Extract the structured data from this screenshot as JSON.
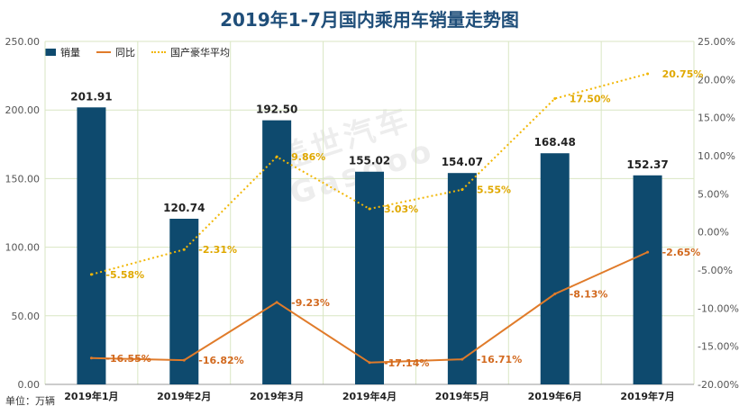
{
  "chart_data": {
    "type": "bar",
    "title": "2019年1-7月国内乘用车销量走势图",
    "unit_label": "单位：万辆",
    "watermark": "盖世汽车 Gasgoo",
    "categories": [
      "2019年1月",
      "2019年2月",
      "2019年3月",
      "2019年4月",
      "2019年5月",
      "2019年6月",
      "2019年7月"
    ],
    "series": [
      {
        "name": "销量",
        "kind": "bar",
        "axis": "left",
        "color": "#0e4a6e",
        "values": [
          201.91,
          120.74,
          192.5,
          155.02,
          154.07,
          168.48,
          152.37
        ],
        "labels": [
          "201.91",
          "120.74",
          "192.50",
          "155.02",
          "154.07",
          "168.48",
          "152.37"
        ]
      },
      {
        "name": "同比",
        "kind": "line",
        "axis": "right",
        "color": "#e07b2a",
        "values": [
          -16.55,
          -16.82,
          -9.23,
          -17.14,
          -16.71,
          -8.13,
          -2.65
        ],
        "labels": [
          "-16.55%",
          "-16.82%",
          "-9.23%",
          "-17.14%",
          "-16.71%",
          "-8.13%",
          "-2.65%"
        ]
      },
      {
        "name": "国产豪华平均",
        "kind": "dotted-line",
        "axis": "right",
        "color": "#f2b705",
        "values": [
          -5.58,
          -2.31,
          9.86,
          3.03,
          5.55,
          17.5,
          20.75
        ],
        "labels": [
          "-5.58%",
          "-2.31%",
          "9.86%",
          "3.03%",
          "5.55%",
          "17.50%",
          "20.75%"
        ]
      }
    ],
    "y_left": {
      "ylim": [
        0,
        250
      ],
      "ticks": [
        "0.00",
        "50.00",
        "100.00",
        "150.00",
        "200.00",
        "250.00"
      ]
    },
    "y_right": {
      "ylim": [
        -20,
        25
      ],
      "ticks": [
        "-20.00%",
        "-15.00%",
        "-10.00%",
        "-5.00%",
        "0.00%",
        "5.00%",
        "10.00%",
        "15.00%",
        "20.00%",
        "25.00%"
      ]
    },
    "grid": true,
    "legend_position": "top-left"
  }
}
